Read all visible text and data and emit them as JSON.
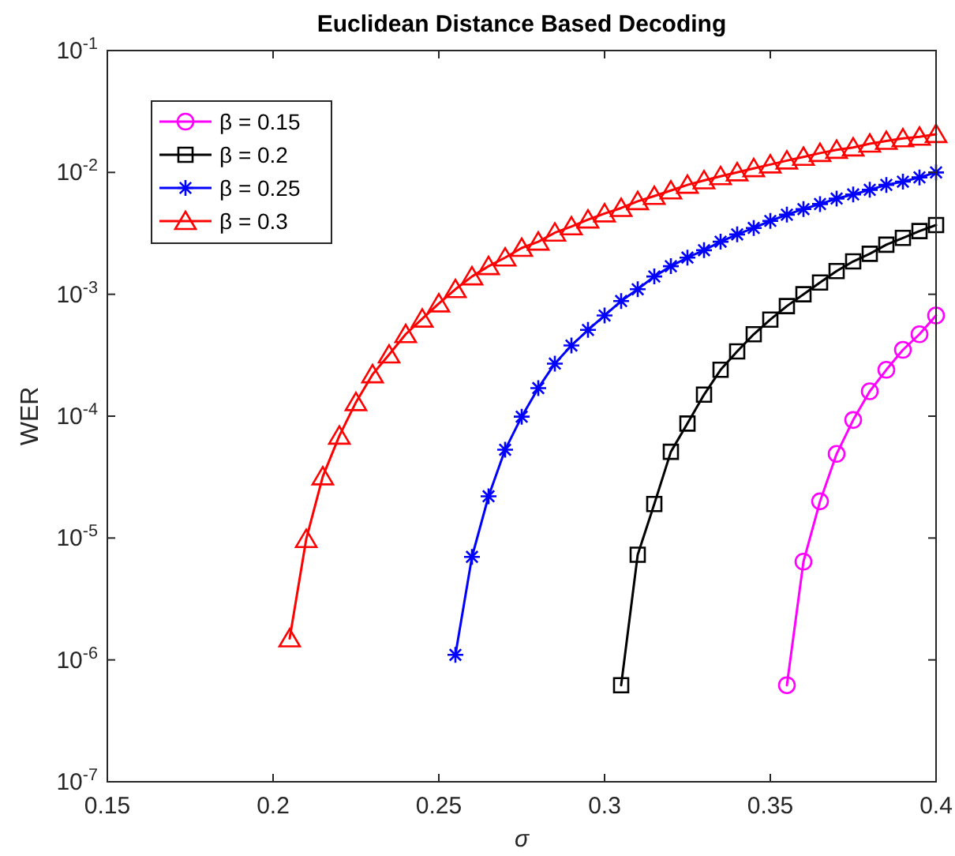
{
  "chart_data": {
    "type": "line",
    "title": "Euclidean Distance Based Decoding",
    "xlabel": "σ",
    "ylabel": "WER",
    "log": "y",
    "grid": false,
    "legend": "top left",
    "line_style": "solid",
    "xlim": [
      0.15,
      0.4
    ],
    "xticks": [
      0.15,
      0.2,
      0.25,
      0.3,
      0.35,
      0.4
    ],
    "ylim": [
      1e-07,
      0.1
    ],
    "yticks": [
      {
        "value": 1e-07,
        "label": "10$^{-7}$"
      },
      {
        "value": 1e-06,
        "label": "10$^{-6}$"
      },
      {
        "value": 1e-05,
        "label": "10$^{-5}$"
      },
      {
        "value": 0.0001,
        "label": "10$^{-4}$"
      },
      {
        "value": 0.001,
        "label": "10$^{-3}$"
      },
      {
        "value": 0.01,
        "label": "10$^{-2}$"
      },
      {
        "value": 0.1,
        "label": "10$^{-1}$"
      }
    ],
    "series": [
      {
        "name": "β = 0.15",
        "color": "#ff00ff",
        "marker": "circle",
        "x": [
          0.355,
          0.36,
          0.365,
          0.37,
          0.375,
          0.38,
          0.385,
          0.39,
          0.395,
          0.4
        ],
        "values": [
          6.2e-07,
          6.4e-06,
          2e-05,
          4.9e-05,
          9.3e-05,
          0.00016,
          0.00024,
          0.00035,
          0.00047,
          0.00067
        ]
      },
      {
        "name": "β = 0.2",
        "color": "#000000",
        "marker": "square",
        "x": [
          0.305,
          0.31,
          0.315,
          0.32,
          0.325,
          0.33,
          0.335,
          0.34,
          0.345,
          0.35,
          0.355,
          0.36,
          0.365,
          0.37,
          0.375,
          0.38,
          0.385,
          0.39,
          0.395,
          0.4
        ],
        "values": [
          6.2e-07,
          7.3e-06,
          1.9e-05,
          5.1e-05,
          8.7e-05,
          0.00015,
          0.00024,
          0.00034,
          0.00047,
          0.00062,
          0.0008,
          0.001,
          0.00125,
          0.00155,
          0.00186,
          0.00215,
          0.00255,
          0.0029,
          0.0033,
          0.0037
        ]
      },
      {
        "name": "β = 0.25",
        "color": "#0000ff",
        "marker": "cross",
        "x": [
          0.255,
          0.26,
          0.265,
          0.27,
          0.275,
          0.28,
          0.285,
          0.29,
          0.295,
          0.3,
          0.305,
          0.31,
          0.315,
          0.32,
          0.325,
          0.33,
          0.335,
          0.34,
          0.345,
          0.35,
          0.355,
          0.36,
          0.365,
          0.37,
          0.375,
          0.38,
          0.385,
          0.39,
          0.395,
          0.4
        ],
        "values": [
          1.1e-06,
          7e-06,
          2.2e-05,
          5.3e-05,
          9.9e-05,
          0.00017,
          0.00027,
          0.00038,
          0.00051,
          0.00067,
          0.00088,
          0.0011,
          0.0014,
          0.0017,
          0.002,
          0.0023,
          0.0027,
          0.0031,
          0.0035,
          0.004,
          0.0045,
          0.005,
          0.0055,
          0.0061,
          0.0066,
          0.0072,
          0.0079,
          0.0084,
          0.0091,
          0.01
        ]
      },
      {
        "name": "β = 0.3",
        "color": "#ff0000",
        "marker": "triangle",
        "x": [
          0.205,
          0.21,
          0.215,
          0.22,
          0.225,
          0.23,
          0.235,
          0.24,
          0.245,
          0.25,
          0.255,
          0.26,
          0.265,
          0.27,
          0.275,
          0.28,
          0.285,
          0.29,
          0.295,
          0.3,
          0.305,
          0.31,
          0.315,
          0.32,
          0.325,
          0.33,
          0.335,
          0.34,
          0.345,
          0.35,
          0.355,
          0.36,
          0.365,
          0.37,
          0.375,
          0.38,
          0.385,
          0.39,
          0.395,
          0.4
        ],
        "values": [
          1.5e-06,
          9.8e-06,
          3.2e-05,
          6.9e-05,
          0.00013,
          0.00022,
          0.00032,
          0.00047,
          0.00063,
          0.00084,
          0.0011,
          0.0014,
          0.0017,
          0.002,
          0.0024,
          0.0027,
          0.0032,
          0.0036,
          0.0041,
          0.0046,
          0.0051,
          0.0058,
          0.0064,
          0.0071,
          0.0079,
          0.0086,
          0.0093,
          0.01,
          0.0108,
          0.0116,
          0.0125,
          0.0134,
          0.0144,
          0.0153,
          0.016,
          0.0172,
          0.0181,
          0.019,
          0.0196,
          0.0206
        ]
      }
    ]
  }
}
